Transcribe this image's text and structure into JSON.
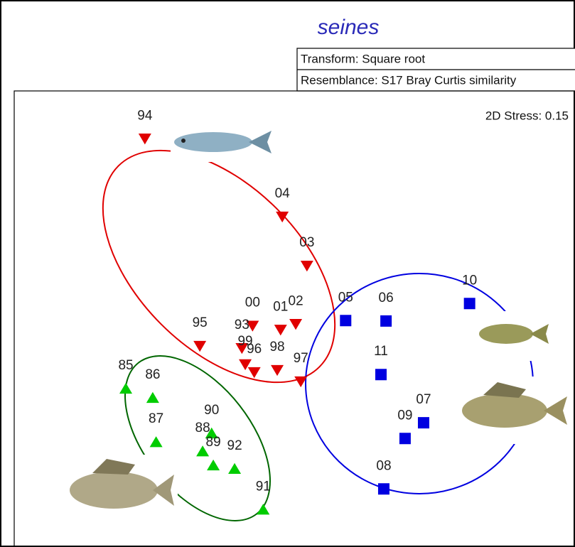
{
  "chart_data": {
    "type": "scatter",
    "title": "seines",
    "notes": [
      "Transform: Square root",
      "Resemblance: S17 Bray Curtis similarity"
    ],
    "stress_label": "2D Stress: 0.15",
    "xlim": [
      0,
      100
    ],
    "ylim": [
      0,
      100
    ],
    "series": [
      {
        "color": "#e00000",
        "marker": "triangle-down",
        "point_labels": [
          "94",
          "04",
          "03",
          "95",
          "00",
          "01",
          "02",
          "93",
          "99",
          "96",
          "98",
          "97"
        ],
        "x": [
          23.3,
          47.8,
          52.2,
          33.1,
          42.5,
          47.5,
          50.2,
          40.6,
          41.2,
          42.8,
          46.9,
          51.1
        ],
        "values": [
          89.1,
          71.3,
          60.1,
          41.8,
          46.4,
          45.5,
          46.8,
          41.3,
          37.6,
          35.8,
          36.3,
          33.7
        ]
      },
      {
        "color": "#00cc00",
        "marker": "triangle-up",
        "point_labels": [
          "85",
          "86",
          "87",
          "90",
          "88",
          "89",
          "92",
          "91"
        ],
        "x": [
          19.9,
          24.7,
          25.3,
          35.2,
          33.6,
          35.5,
          39.3,
          44.4
        ],
        "values": [
          32.1,
          30.0,
          19.9,
          21.9,
          17.8,
          14.6,
          13.8,
          4.5
        ]
      },
      {
        "color": "#0000e0",
        "marker": "square",
        "point_labels": [
          "05",
          "06",
          "10",
          "11",
          "07",
          "09",
          "08"
        ],
        "x": [
          59.1,
          66.3,
          81.2,
          65.4,
          73.0,
          69.7,
          65.9
        ],
        "values": [
          47.6,
          47.5,
          51.5,
          35.3,
          24.3,
          20.7,
          9.2
        ]
      }
    ]
  }
}
